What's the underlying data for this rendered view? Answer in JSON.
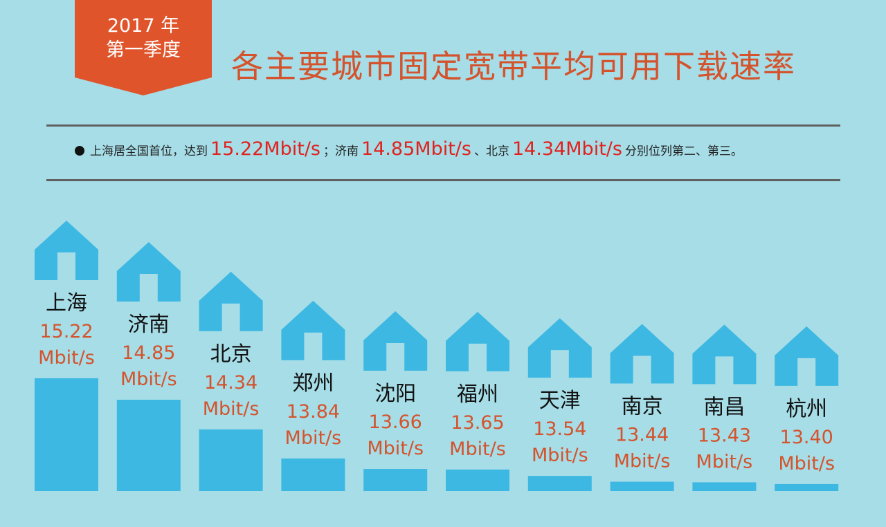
{
  "badge": {
    "year": "2017 年",
    "quarter": "第一季度"
  },
  "title": "各主要城市固定宽带平均可用下载速率",
  "summary": {
    "part1": "上海居全国首位，达到",
    "v1": "15.22Mbit/s",
    "part2": "；济南",
    "v2": "14.85Mbit/s",
    "part3": "、北京",
    "v3": "14.34Mbit/s",
    "part4": "分别位列第二、第三。"
  },
  "colors": {
    "background": "#a6dde7",
    "bar": "#3db8e2",
    "badge": "#e0542b",
    "title": "#d4532c",
    "value": "#d4532c",
    "highlight": "#e0221e"
  },
  "chart_data": {
    "type": "bar",
    "title": "各主要城市固定宽带平均可用下载速率",
    "xlabel": "",
    "ylabel": "",
    "unit": "Mbit/s",
    "categories": [
      "上海",
      "济南",
      "北京",
      "郑州",
      "沈阳",
      "福州",
      "天津",
      "南京",
      "南昌",
      "杭州"
    ],
    "values": [
      15.22,
      14.85,
      14.34,
      13.84,
      13.66,
      13.65,
      13.54,
      13.44,
      13.43,
      13.4
    ],
    "value_labels": [
      "15.22",
      "14.85",
      "14.34",
      "13.84",
      "13.66",
      "13.65",
      "13.54",
      "13.44",
      "13.43",
      "13.40"
    ],
    "ylim": [
      13.28,
      15.6
    ],
    "grid": false,
    "legend": "none"
  }
}
